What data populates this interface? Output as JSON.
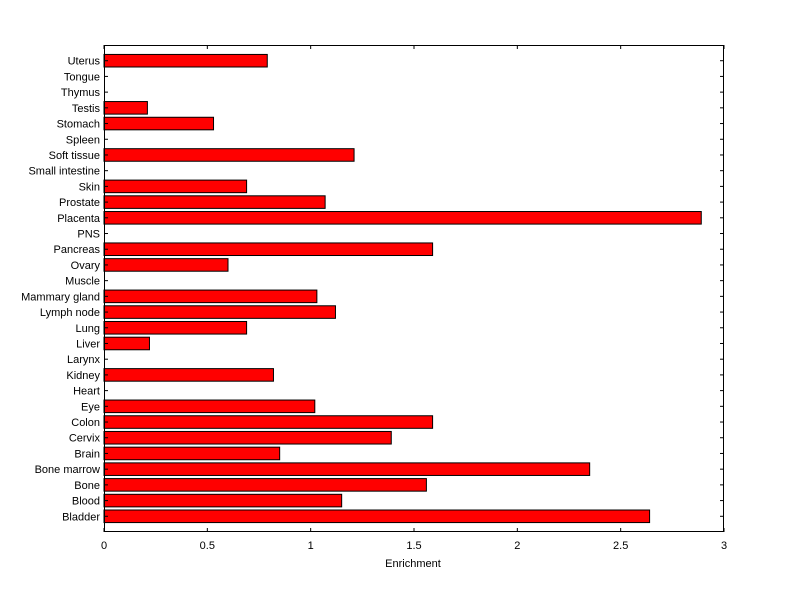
{
  "chart_data": {
    "type": "bar",
    "orientation": "horizontal",
    "categories": [
      "Bladder",
      "Blood",
      "Bone",
      "Bone marrow",
      "Brain",
      "Cervix",
      "Colon",
      "Eye",
      "Heart",
      "Kidney",
      "Larynx",
      "Liver",
      "Lung",
      "Lymph node",
      "Mammary gland",
      "Muscle",
      "Ovary",
      "Pancreas",
      "PNS",
      "Placenta",
      "Prostate",
      "Skin",
      "Small intestine",
      "Soft tissue",
      "Spleen",
      "Stomach",
      "Testis",
      "Thymus",
      "Tongue",
      "Uterus"
    ],
    "values": [
      2.64,
      1.15,
      1.56,
      2.35,
      0.85,
      1.39,
      1.59,
      1.02,
      0,
      0.82,
      0,
      0.22,
      0.69,
      1.12,
      1.03,
      0,
      0.6,
      1.59,
      0,
      2.89,
      1.07,
      0.69,
      0,
      1.21,
      0,
      0.53,
      0.21,
      0,
      0,
      0.79
    ],
    "xlabel": "Enrichment",
    "ylabel": "",
    "xlim": [
      0,
      3
    ],
    "xticks": [
      "0",
      "0.5",
      "1",
      "1.5",
      "2",
      "2.5",
      "3"
    ],
    "grid": false,
    "bar_color": "#ff0000",
    "edge_color": "#000000"
  }
}
